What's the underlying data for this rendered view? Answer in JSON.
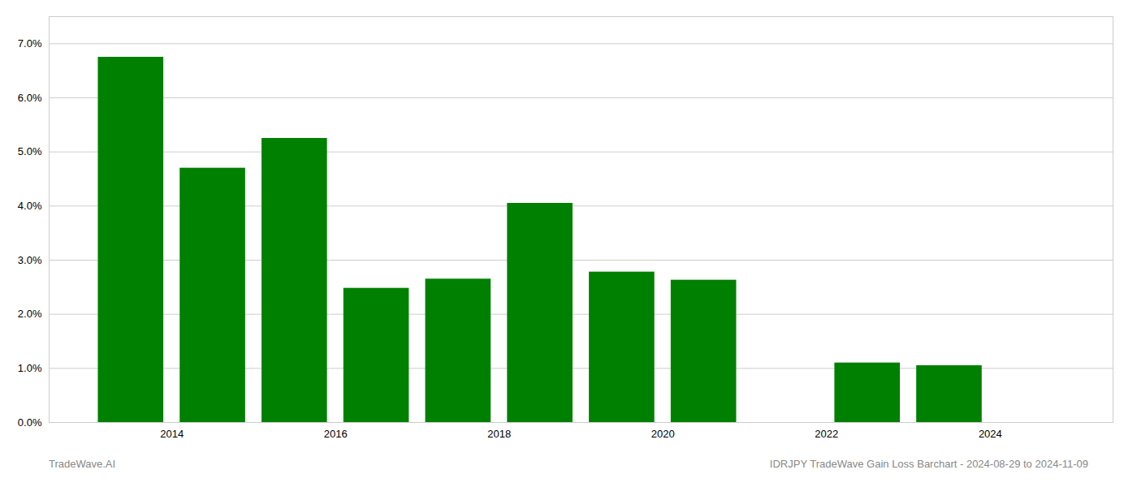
{
  "chart_data": {
    "type": "bar",
    "x": [
      2013.5,
      2014.5,
      2015.5,
      2016.5,
      2017.5,
      2018.5,
      2019.5,
      2020.5,
      2022.5,
      2023.5
    ],
    "values": [
      0.0675,
      0.047,
      0.0525,
      0.0248,
      0.0265,
      0.0405,
      0.0278,
      0.0263,
      0.011,
      0.0105
    ],
    "color": "#008000",
    "xlim": [
      2012.5,
      2025.5
    ],
    "xticks": [
      2014,
      2016,
      2018,
      2020,
      2022,
      2024
    ],
    "ylim": [
      0.0,
      0.075
    ],
    "yticks": [
      {
        "value": 0.0,
        "label": "0.0%"
      },
      {
        "value": 0.01,
        "label": "1.0%"
      },
      {
        "value": 0.02,
        "label": "2.0%"
      },
      {
        "value": 0.03,
        "label": "3.0%"
      },
      {
        "value": 0.04,
        "label": "4.0%"
      },
      {
        "value": 0.05,
        "label": "5.0%"
      },
      {
        "value": 0.06,
        "label": "6.0%"
      },
      {
        "value": 0.07,
        "label": "7.0%"
      }
    ],
    "grid": true,
    "annotations": [
      "TradeWave.AI",
      "IDRJPY TradeWave Gain Loss Barchart - 2024-08-29 to 2024-11-09"
    ]
  }
}
